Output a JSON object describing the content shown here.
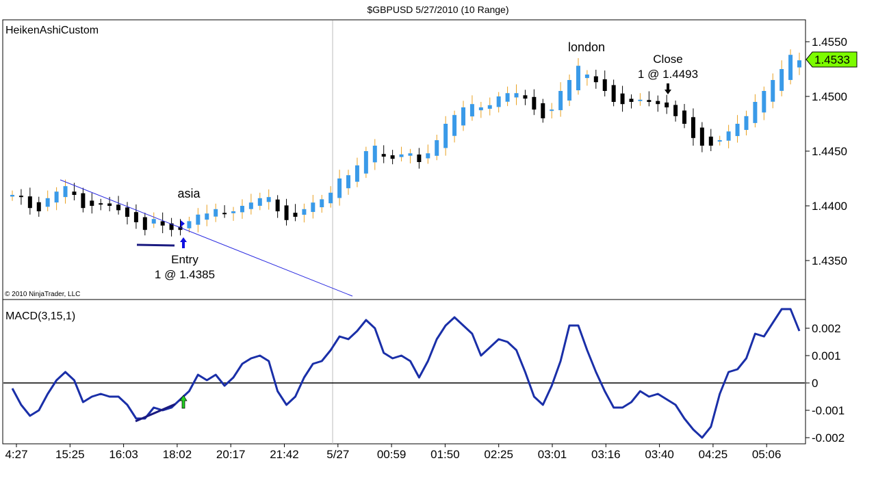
{
  "title": "$GBPUSD  5/27/2010 (10 Range)",
  "copyright": "© 2010 NinjaTrader, LLC",
  "colors": {
    "up_body": "#3a9ae8",
    "down_body": "#000000",
    "up_wick": "#e8a020",
    "macd_line": "#1a2fa8",
    "trend_line": "#2a2ae0",
    "last_price_badge": "#7cfc00",
    "entry_arrow": "#1010e0",
    "exit_arrow": "#000000",
    "macd_arrow": "#22cc22"
  },
  "annotations": {
    "asia": "asia",
    "london": "london",
    "entry_label": "Entry",
    "entry_detail": "1 @ 1.4385",
    "close_label": "Close",
    "close_detail": "1 @ 1.4493"
  },
  "chart_data": [
    {
      "type": "candlestick",
      "indicator": "HeikenAshiCustom",
      "y_ticks": [
        "1.4550",
        "1.4500",
        "1.4450",
        "1.4400",
        "1.4350"
      ],
      "ylim": [
        1.4315,
        1.4575
      ],
      "last_price": "1.4533",
      "closes": [
        1.441,
        1.4408,
        1.4398,
        1.4395,
        1.4407,
        1.4413,
        1.4418,
        1.441,
        1.4398,
        1.44,
        1.4402,
        1.44,
        1.4396,
        1.439,
        1.4385,
        1.4378,
        1.4388,
        1.4382,
        1.4378,
        1.4378,
        1.4386,
        1.4392,
        1.4393,
        1.4397,
        1.4393,
        1.4395,
        1.44,
        1.4403,
        1.4407,
        1.4408,
        1.4395,
        1.4387,
        1.439,
        1.4397,
        1.4403,
        1.4406,
        1.4412,
        1.4425,
        1.4428,
        1.4437,
        1.445,
        1.4455,
        1.4445,
        1.4443,
        1.4447,
        1.4448,
        1.444,
        1.4448,
        1.446,
        1.4475,
        1.4483,
        1.449,
        1.4493,
        1.449,
        1.4492,
        1.45,
        1.4503,
        1.4503,
        1.4498,
        1.4488,
        1.448,
        1.4488,
        1.4505,
        1.4515,
        1.4528,
        1.452,
        1.4513,
        1.4505,
        1.4495,
        1.4493,
        1.4495,
        1.4497,
        1.4495,
        1.4493,
        1.449,
        1.4482,
        1.4475,
        1.4462,
        1.4455,
        1.4455,
        1.446,
        1.4468,
        1.4475,
        1.4482,
        1.4495,
        1.4505,
        1.4515,
        1.4525,
        1.4538,
        1.4533
      ]
    },
    {
      "type": "line",
      "indicator": "MACD(3,15,1)",
      "y_ticks": [
        "0.002",
        "0.001",
        "0",
        "-0.001",
        "-0.002"
      ],
      "ylim": [
        -0.0022,
        0.003
      ],
      "zero_line": true,
      "values": [
        -0.0002,
        -0.0008,
        -0.0012,
        -0.001,
        -0.0004,
        0.0001,
        0.0004,
        0.0001,
        -0.0007,
        -0.0005,
        -0.0004,
        -0.0005,
        -0.0005,
        -0.0008,
        -0.0013,
        -0.0013,
        -0.0009,
        -0.001,
        -0.0009,
        -0.0006,
        -0.0003,
        0.0003,
        0.0001,
        0.0003,
        -0.0001,
        0.0002,
        0.0007,
        0.0009,
        0.001,
        0.0008,
        -0.0003,
        -0.0008,
        -0.0005,
        0.0002,
        0.0007,
        0.0008,
        0.0012,
        0.0017,
        0.0016,
        0.0019,
        0.0023,
        0.002,
        0.0011,
        0.0009,
        0.001,
        0.0008,
        0.0002,
        0.0008,
        0.0016,
        0.0021,
        0.0024,
        0.0021,
        0.0018,
        0.001,
        0.0013,
        0.0016,
        0.0015,
        0.0012,
        0.0004,
        -0.0005,
        -0.0008,
        -0.0001,
        0.0008,
        0.0021,
        0.0021,
        0.0012,
        0.0004,
        -0.0003,
        -0.0009,
        -0.0009,
        -0.0007,
        -0.0003,
        -0.0005,
        -0.0004,
        -0.0006,
        -0.0008,
        -0.0013,
        -0.0017,
        -0.002,
        -0.0016,
        -0.0004,
        0.0004,
        0.0005,
        0.0009,
        0.0018,
        0.0017,
        0.0022,
        0.0027,
        0.0027,
        0.0019
      ]
    }
  ],
  "x_ticks": [
    "4:27",
    "15:25",
    "16:03",
    "18:02",
    "20:17",
    "21:42",
    "5/27",
    "00:59",
    "01:50",
    "02:25",
    "03:01",
    "03:16",
    "03:40",
    "04:25",
    "05:06"
  ]
}
